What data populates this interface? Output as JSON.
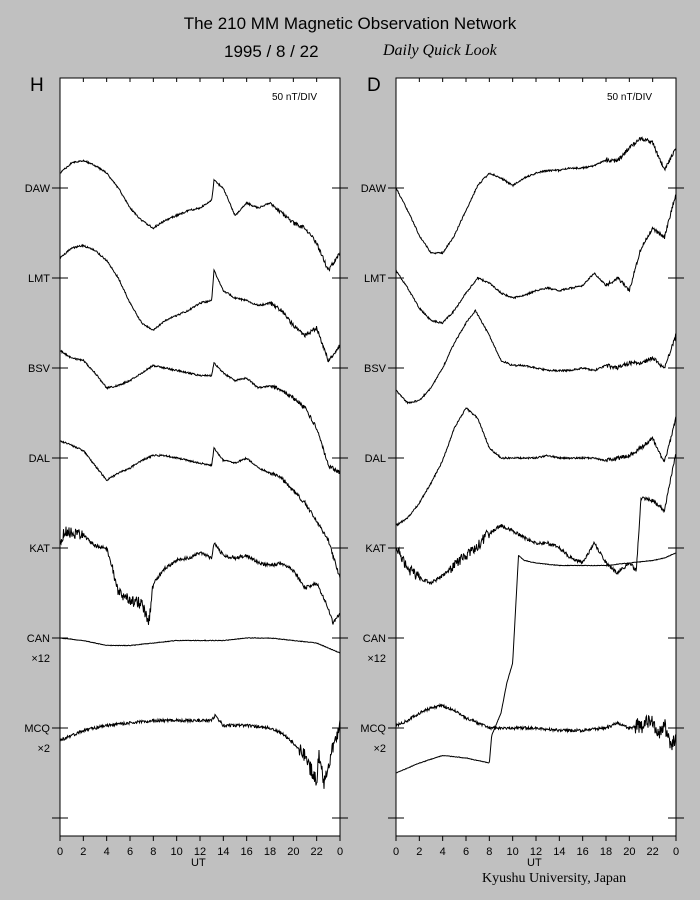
{
  "header": {
    "title": "The 210 MM Magnetic Observation Network",
    "date": "1995  /   8  /  22",
    "subtitle": "Daily Quick Look"
  },
  "footer": {
    "credit": "Kyushu University, Japan"
  },
  "chart_data": [
    {
      "type": "line",
      "panel": "H",
      "scale": "50 nT/DIV",
      "xlabel": "UT",
      "xticks": [
        "0",
        "2",
        "4",
        "6",
        "8",
        "10",
        "12",
        "14",
        "16",
        "18",
        "20",
        "22",
        "0"
      ],
      "xlim": [
        0,
        24
      ],
      "stations": [
        "DAW",
        "LMT",
        "BSV",
        "DAL",
        "KAT",
        "CAN",
        "MCQ"
      ],
      "station_multipliers": [
        "",
        "",
        "",
        "",
        "",
        "×12",
        "×2"
      ],
      "series": [
        {
          "name": "DAW",
          "x": [
            0,
            1,
            2,
            3,
            4,
            5,
            6,
            7,
            8,
            9,
            10,
            11,
            12,
            13,
            13.2,
            14,
            15,
            16,
            17,
            18,
            19,
            20,
            21,
            22,
            23,
            24
          ],
          "y": [
            0.6,
            1.0,
            1.1,
            0.9,
            0.6,
            0.0,
            -0.8,
            -1.3,
            -1.6,
            -1.3,
            -1.1,
            -0.9,
            -0.8,
            -0.5,
            0.3,
            0.0,
            -1.1,
            -0.6,
            -0.8,
            -0.6,
            -1.0,
            -1.4,
            -1.6,
            -2.2,
            -3.3,
            -2.6
          ]
        },
        {
          "name": "LMT",
          "x": [
            0,
            1,
            2,
            3,
            4,
            5,
            6,
            7,
            8,
            9,
            10,
            11,
            12,
            13,
            13.2,
            14,
            15,
            16,
            17,
            18,
            19,
            20,
            21,
            22,
            23,
            24
          ],
          "y": [
            0.8,
            1.2,
            1.3,
            1.1,
            0.7,
            0.0,
            -1.0,
            -1.8,
            -2.1,
            -1.7,
            -1.5,
            -1.3,
            -1.0,
            -0.9,
            0.3,
            -0.5,
            -0.8,
            -0.9,
            -1.1,
            -1.0,
            -1.3,
            -1.9,
            -2.3,
            -2.0,
            -3.3,
            -2.7
          ]
        },
        {
          "name": "BSV",
          "x": [
            0,
            1,
            2,
            3,
            4,
            5,
            6,
            7,
            8,
            9,
            10,
            11,
            12,
            13,
            13.2,
            14,
            15,
            16,
            17,
            18,
            19,
            20,
            21,
            22,
            23,
            24
          ],
          "y": [
            0.7,
            0.4,
            0.3,
            -0.2,
            -0.8,
            -0.7,
            -0.5,
            -0.2,
            0.1,
            0.0,
            -0.1,
            -0.2,
            -0.3,
            -0.3,
            0.2,
            -0.2,
            -0.5,
            -0.4,
            -0.8,
            -0.7,
            -0.9,
            -1.2,
            -1.6,
            -2.4,
            -3.9,
            -4.2
          ]
        },
        {
          "name": "DAL",
          "x": [
            0,
            1,
            2,
            3,
            4,
            5,
            6,
            7,
            8,
            9,
            10,
            11,
            12,
            13,
            13.2,
            14,
            15,
            16,
            17,
            18,
            19,
            20,
            21,
            22,
            23,
            24
          ],
          "y": [
            0.7,
            0.5,
            0.3,
            -0.3,
            -0.9,
            -0.6,
            -0.4,
            -0.1,
            0.1,
            0.1,
            0.0,
            -0.1,
            -0.2,
            -0.3,
            0.4,
            -0.1,
            -0.2,
            0.0,
            -0.4,
            -0.6,
            -0.8,
            -1.3,
            -1.8,
            -2.5,
            -3.3,
            -4.8
          ]
        },
        {
          "name": "KAT",
          "x": [
            0,
            0.5,
            1,
            2,
            3,
            4,
            4.6,
            5,
            6,
            7,
            7.6,
            8,
            9,
            10,
            11,
            12,
            13,
            13.2,
            14,
            15,
            16,
            17,
            18,
            19,
            20,
            21,
            22,
            23,
            23.4,
            24
          ],
          "y": [
            0.3,
            0.7,
            0.6,
            0.5,
            0.1,
            0.0,
            -1.0,
            -1.8,
            -2.1,
            -2.2,
            -3.0,
            -1.4,
            -0.8,
            -0.5,
            -0.4,
            -0.2,
            -0.4,
            0.2,
            -0.3,
            -0.4,
            -0.3,
            -0.6,
            -0.7,
            -0.6,
            -0.9,
            -1.6,
            -1.4,
            -2.4,
            -3.0,
            -2.6
          ]
        },
        {
          "name": "CAN",
          "x": [
            0,
            2,
            4,
            6,
            8,
            10,
            12,
            14,
            16,
            18,
            20,
            22,
            23,
            24
          ],
          "y": [
            0.0,
            -0.1,
            -0.3,
            -0.3,
            -0.2,
            -0.1,
            -0.1,
            -0.1,
            0.0,
            0.0,
            -0.1,
            -0.2,
            -0.4,
            -0.6
          ]
        },
        {
          "name": "MCQ",
          "x": [
            0,
            1,
            2,
            4,
            6,
            8,
            10,
            12,
            13,
            13.3,
            14,
            16,
            18,
            19,
            20,
            21,
            22,
            22.2,
            22.6,
            23,
            23.5,
            24
          ],
          "y": [
            -0.5,
            -0.3,
            -0.1,
            0.1,
            0.2,
            0.3,
            0.3,
            0.3,
            0.3,
            0.5,
            0.1,
            0.1,
            0.0,
            -0.2,
            -0.6,
            -1.1,
            -2.2,
            -1.0,
            -2.3,
            -1.4,
            -0.6,
            0.1
          ]
        }
      ]
    },
    {
      "type": "line",
      "panel": "D",
      "scale": "50 nT/DIV",
      "xlabel": "UT",
      "xticks": [
        "0",
        "2",
        "4",
        "6",
        "8",
        "10",
        "12",
        "14",
        "16",
        "18",
        "20",
        "22",
        "0"
      ],
      "xlim": [
        0,
        24
      ],
      "stations": [
        "DAW",
        "LMT",
        "BSV",
        "DAL",
        "KAT",
        "CAN",
        "MCQ"
      ],
      "station_multipliers": [
        "",
        "",
        "",
        "",
        "",
        "×12",
        "×2"
      ],
      "series": [
        {
          "name": "DAW",
          "x": [
            0,
            1,
            2,
            3,
            4,
            5,
            6,
            7,
            8,
            9,
            10,
            11,
            12,
            13,
            14,
            15,
            16,
            17,
            18,
            19,
            20,
            21,
            22,
            23,
            24
          ],
          "y": [
            0.0,
            -0.9,
            -1.9,
            -2.6,
            -2.6,
            -1.9,
            -0.9,
            0.1,
            0.6,
            0.4,
            0.1,
            0.4,
            0.6,
            0.7,
            0.7,
            0.8,
            0.8,
            0.9,
            1.1,
            1.1,
            1.6,
            2.0,
            1.8,
            0.7,
            1.6
          ]
        },
        {
          "name": "LMT",
          "x": [
            0,
            1,
            2,
            3,
            4,
            5,
            6,
            7,
            8,
            9,
            10,
            11,
            12,
            13,
            14,
            15,
            16,
            17,
            18,
            19,
            20,
            21,
            22,
            23,
            24
          ],
          "y": [
            0.3,
            -0.4,
            -1.2,
            -1.7,
            -1.8,
            -1.3,
            -0.6,
            0.0,
            -0.2,
            -0.6,
            -0.8,
            -0.7,
            -0.5,
            -0.4,
            -0.5,
            -0.4,
            -0.3,
            0.2,
            -0.3,
            0.0,
            -0.5,
            1.2,
            2.0,
            1.6,
            3.4
          ]
        },
        {
          "name": "BSV",
          "x": [
            0,
            1,
            2,
            3,
            4,
            5,
            6,
            6.8,
            8,
            9,
            10,
            11,
            12,
            13,
            14,
            15,
            16,
            17,
            18,
            19,
            20,
            21,
            22,
            23,
            24
          ],
          "y": [
            -0.9,
            -1.4,
            -1.3,
            -0.8,
            0.0,
            1.0,
            1.8,
            2.3,
            1.3,
            0.3,
            0.1,
            0.1,
            0.0,
            -0.1,
            -0.1,
            -0.1,
            0.0,
            -0.1,
            0.1,
            0.0,
            0.2,
            0.2,
            0.4,
            0.0,
            1.3
          ]
        },
        {
          "name": "DAL",
          "x": [
            0,
            1,
            2,
            3,
            4,
            5,
            6,
            7,
            8,
            9,
            10,
            11,
            12,
            13,
            14,
            15,
            16,
            17,
            18,
            19,
            20,
            21,
            22,
            23,
            24
          ],
          "y": [
            -2.7,
            -2.4,
            -1.8,
            -1.0,
            -0.1,
            1.2,
            2.0,
            1.6,
            0.4,
            0.0,
            0.0,
            0.0,
            0.0,
            0.1,
            0.0,
            0.0,
            0.0,
            0.0,
            -0.1,
            0.0,
            0.1,
            0.4,
            0.8,
            -0.2,
            1.6
          ]
        },
        {
          "name": "KAT",
          "x": [
            0,
            1,
            2,
            3,
            4,
            5,
            6,
            7,
            8,
            9,
            10,
            11,
            12,
            13,
            14,
            15,
            16,
            17,
            18,
            19,
            20,
            20.6,
            21,
            22,
            23,
            24
          ],
          "y": [
            0.0,
            -0.8,
            -1.2,
            -1.4,
            -1.1,
            -0.7,
            -0.3,
            0.1,
            0.6,
            0.9,
            0.7,
            0.4,
            0.2,
            0.2,
            0.0,
            -0.4,
            -0.6,
            0.2,
            -0.6,
            -1.0,
            -0.6,
            -0.9,
            2.0,
            1.9,
            1.5,
            3.8
          ]
        },
        {
          "name": "CAN",
          "x": [
            0,
            2,
            4,
            6,
            8,
            8.2,
            9,
            9.5,
            10,
            10.5,
            11,
            12,
            14,
            16,
            18,
            20,
            22,
            23,
            24
          ],
          "y": [
            -5.4,
            -5.0,
            -4.7,
            -4.8,
            -5.0,
            -3.9,
            -3.0,
            -1.8,
            -1.0,
            3.3,
            3.1,
            3.0,
            2.9,
            2.9,
            2.9,
            3.0,
            3.1,
            3.2,
            3.4
          ]
        },
        {
          "name": "MCQ",
          "x": [
            0,
            1,
            2,
            3,
            4,
            5,
            6,
            7,
            8,
            9,
            10,
            12,
            14,
            16,
            18,
            19,
            20,
            21,
            22,
            22.5,
            23,
            23.5,
            24
          ],
          "y": [
            0.1,
            0.3,
            0.6,
            0.8,
            0.9,
            0.7,
            0.4,
            0.2,
            0.0,
            0.0,
            0.0,
            0.0,
            -0.1,
            -0.1,
            0.0,
            0.2,
            0.0,
            0.1,
            0.3,
            -0.4,
            0.2,
            -0.6,
            -0.5
          ]
        }
      ]
    }
  ]
}
